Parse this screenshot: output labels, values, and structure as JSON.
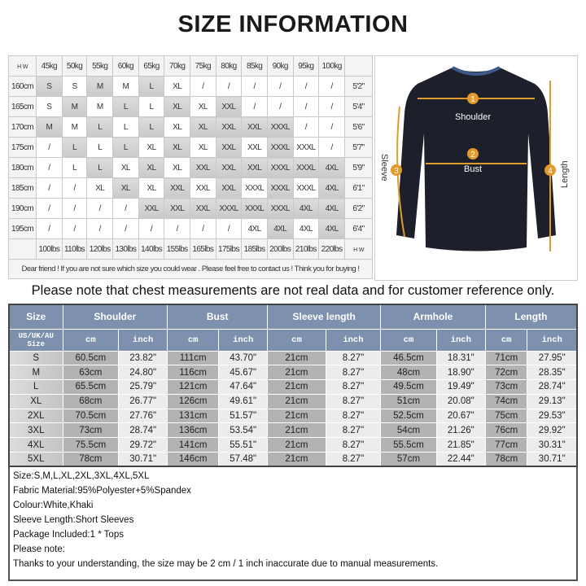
{
  "title": "SIZE INFORMATION",
  "grid": {
    "corner_h": "H",
    "corner_w": "W",
    "weights_kg": [
      "45kg",
      "50kg",
      "55kg",
      "60kg",
      "65kg",
      "70kg",
      "75kg",
      "80kg",
      "85kg",
      "90kg",
      "95kg",
      "100kg"
    ],
    "rows": [
      {
        "h": "160cm",
        "ft": "5'2\"",
        "s": [
          "S",
          "S",
          "M",
          "M",
          "L",
          "XL",
          "/",
          "/",
          "/",
          "/",
          "/",
          "/"
        ]
      },
      {
        "h": "165cm",
        "ft": "5'4\"",
        "s": [
          "S",
          "M",
          "M",
          "L",
          "L",
          "XL",
          "XL",
          "XXL",
          "/",
          "/",
          "/",
          "/"
        ]
      },
      {
        "h": "170cm",
        "ft": "5'6\"",
        "s": [
          "M",
          "M",
          "L",
          "L",
          "L",
          "XL",
          "XL",
          "XXL",
          "XXL",
          "XXXL",
          "/",
          "/"
        ]
      },
      {
        "h": "175cm",
        "ft": "5'7\"",
        "s": [
          "/",
          "L",
          "L",
          "L",
          "XL",
          "XL",
          "XL",
          "XXL",
          "XXL",
          "XXXL",
          "XXXL",
          "/"
        ]
      },
      {
        "h": "180cm",
        "ft": "5'9\"",
        "s": [
          "/",
          "L",
          "L",
          "XL",
          "XL",
          "XL",
          "XXL",
          "XXL",
          "XXL",
          "XXXL",
          "XXXL",
          "4XL"
        ]
      },
      {
        "h": "185cm",
        "ft": "6'1\"",
        "s": [
          "/",
          "/",
          "XL",
          "XL",
          "XL",
          "XXL",
          "XXL",
          "XXL",
          "XXXL",
          "XXXL",
          "XXXL",
          "4XL"
        ]
      },
      {
        "h": "190cm",
        "ft": "6'2\"",
        "s": [
          "/",
          "/",
          "/",
          "/",
          "XXL",
          "XXL",
          "XXL",
          "XXXL",
          "XXXL",
          "XXXL",
          "4XL",
          "4XL"
        ]
      },
      {
        "h": "195cm",
        "ft": "6'4\"",
        "s": [
          "/",
          "/",
          "/",
          "/",
          "/",
          "/",
          "/",
          "/",
          "4XL",
          "4XL",
          "4XL",
          "4XL"
        ]
      }
    ],
    "weights_lbs": [
      "100lbs",
      "110lbs",
      "120lbs",
      "130lbs",
      "140lbs",
      "155lbs",
      "165lbs",
      "175lbs",
      "185lbs",
      "200lbs",
      "210lbs",
      "220lbs"
    ],
    "note": "Dear friend ! If you are not sure which size you could wear . Please feel free to contact us ! Think you for buying !"
  },
  "photo": {
    "labels": {
      "shoulder": "Shoulder",
      "bust": "Bust",
      "sleeve": "Sleeve",
      "length": "Length"
    },
    "numbers": [
      "1",
      "2",
      "3",
      "4"
    ],
    "accent": "#e39a2d"
  },
  "chest_note": "Please note that chest measurements  are not real data and for customer reference only.",
  "measurements": {
    "headers": [
      "Size",
      "Shoulder",
      "Bust",
      "Sleeve length",
      "Armhole",
      "Length"
    ],
    "sub_size": "US/UK/AU Size",
    "unit_cm": "cm",
    "unit_inch": "inch",
    "rows": [
      [
        "S",
        "60.5cm",
        "23.82\"",
        "111cm",
        "43.70\"",
        "21cm",
        "8.27\"",
        "46.5cm",
        "18.31\"",
        "71cm",
        "27.95\""
      ],
      [
        "M",
        "63cm",
        "24.80\"",
        "116cm",
        "45.67\"",
        "21cm",
        "8.27\"",
        "48cm",
        "18.90\"",
        "72cm",
        "28.35\""
      ],
      [
        "L",
        "65.5cm",
        "25.79\"",
        "121cm",
        "47.64\"",
        "21cm",
        "8.27\"",
        "49.5cm",
        "19.49\"",
        "73cm",
        "28.74\""
      ],
      [
        "XL",
        "68cm",
        "26.77\"",
        "126cm",
        "49.61\"",
        "21cm",
        "8.27\"",
        "51cm",
        "20.08\"",
        "74cm",
        "29.13\""
      ],
      [
        "2XL",
        "70.5cm",
        "27.76\"",
        "131cm",
        "51.57\"",
        "21cm",
        "8.27\"",
        "52.5cm",
        "20.67\"",
        "75cm",
        "29.53\""
      ],
      [
        "3XL",
        "73cm",
        "28.74\"",
        "136cm",
        "53.54\"",
        "21cm",
        "8.27\"",
        "54cm",
        "21.26\"",
        "76cm",
        "29.92\""
      ],
      [
        "4XL",
        "75.5cm",
        "29.72\"",
        "141cm",
        "55.51\"",
        "21cm",
        "8.27\"",
        "55.5cm",
        "21.85\"",
        "77cm",
        "30.31\""
      ],
      [
        "5XL",
        "78cm",
        "30.71\"",
        "146cm",
        "57.48\"",
        "21cm",
        "8.27\"",
        "57cm",
        "22.44\"",
        "78cm",
        "30.71\""
      ]
    ],
    "header_color": "#7d91ae"
  },
  "info": [
    "Size:S,M,L,XL,2XL,3XL,4XL,5XL",
    "Fabric Material:95%Polyester+5%Spandex",
    "Colour:White,Khaki",
    "Sleeve Length:Short Sleeves",
    "Package Included:1 * Tops",
    "Please note:",
    "Thanks to your understanding, the size may be 2 cm / 1 inch inaccurate due to manual measurements."
  ]
}
